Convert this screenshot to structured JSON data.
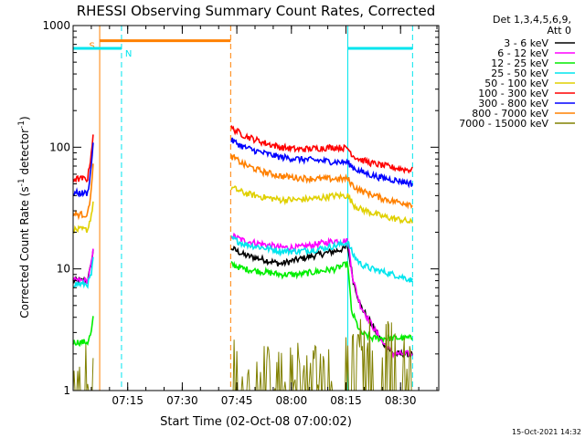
{
  "chart_data": {
    "type": "line",
    "title": "RHESSI Observing Summary Count Rates, Corrected",
    "xlabel": "Start Time (02-Oct-08 07:00:02)",
    "ylabel_main": "Corrected Count Rate (s",
    "ylabel_sup1": "-1",
    "ylabel_mid": " detector",
    "ylabel_sup2": "-1",
    "ylabel_end": ")",
    "xlim": [
      "07:00:02",
      "08:40:30"
    ],
    "ylim": [
      1,
      1000
    ],
    "yscale": "log",
    "xticks": [
      "07:15",
      "07:30",
      "07:45",
      "08:00",
      "08:15",
      "08:30"
    ],
    "xtick_values": [
      15,
      30,
      45,
      60,
      75,
      90
    ],
    "yticks": [
      "1",
      "10",
      "100",
      "1000"
    ],
    "ytick_values": [
      1,
      10,
      100,
      1000
    ],
    "legend_position": "right",
    "legend_title": [
      "Det 1,3,4,5,6,9,",
      "Att 0"
    ],
    "timestamp": "15-Oct-2021 14:32",
    "data_gaps_minutes": [
      [
        5.5,
        43.3
      ]
    ],
    "series": [
      {
        "name": "3 - 6 keV",
        "color": "#000000",
        "x": [
          0,
          4,
          5,
          5.5,
          43.3,
          47,
          52,
          57,
          62,
          67,
          72,
          75.5,
          77,
          79,
          82,
          85,
          88,
          91,
          93.3
        ],
        "y": [
          8,
          8,
          11,
          14,
          15,
          13,
          12,
          11,
          12,
          13,
          14,
          15,
          8,
          5,
          3.5,
          2.5,
          2,
          2,
          2
        ]
      },
      {
        "name": "6 - 12 keV",
        "color": "#ff00ff",
        "x": [
          0,
          4,
          5,
          5.5,
          43.3,
          47,
          52,
          57,
          62,
          67,
          72,
          75.5,
          77,
          79,
          82,
          85,
          88,
          91,
          93.3
        ],
        "y": [
          8,
          8,
          11,
          14,
          19,
          17,
          16,
          15,
          15,
          16,
          17,
          17,
          8,
          5,
          3.5,
          2.5,
          2,
          2,
          2
        ]
      },
      {
        "name": "12 - 25 keV",
        "color": "#00ee00",
        "x": [
          0,
          4,
          5,
          5.5,
          43.3,
          47,
          52,
          57,
          62,
          67,
          72,
          75.5,
          76.5,
          79,
          82,
          85,
          88,
          91,
          93.3
        ],
        "y": [
          2.5,
          2.5,
          3,
          4,
          11,
          10,
          9.5,
          9,
          9,
          9.5,
          10,
          11,
          4.5,
          3,
          2.7,
          2.7,
          2.7,
          2.7,
          2.7
        ]
      },
      {
        "name": "25 - 50 keV",
        "color": "#00e5ee",
        "x": [
          0,
          4,
          5,
          5.5,
          43.3,
          47,
          52,
          57,
          62,
          67,
          72,
          75.5,
          77,
          79,
          82,
          85,
          88,
          91,
          93.3
        ],
        "y": [
          7.5,
          7.5,
          9,
          12,
          18,
          16,
          15,
          14,
          14,
          14.5,
          15.5,
          16.5,
          13,
          11,
          10,
          9.5,
          9,
          8.5,
          8
        ]
      },
      {
        "name": "50 - 100 keV",
        "color": "#e0d000",
        "x": [
          0,
          4,
          5,
          5.5,
          43.3,
          47,
          52,
          57,
          62,
          67,
          72,
          75.5,
          77,
          79,
          82,
          85,
          88,
          91,
          93.3
        ],
        "y": [
          21,
          21,
          28,
          34,
          47,
          42,
          39,
          37,
          37,
          38,
          40,
          40,
          34,
          31,
          29,
          27,
          26,
          25,
          24
        ]
      },
      {
        "name": "100 - 300 keV",
        "color": "#ff0000",
        "x": [
          0,
          4,
          5,
          5.5,
          43.3,
          47,
          52,
          57,
          62,
          67,
          72,
          75.5,
          77,
          79,
          82,
          85,
          88,
          91,
          93.3
        ],
        "y": [
          55,
          55,
          90,
          130,
          145,
          125,
          110,
          100,
          96,
          98,
          100,
          98,
          85,
          79,
          74,
          71,
          68,
          66,
          65
        ]
      },
      {
        "name": "300 - 800 keV",
        "color": "#0000ff",
        "x": [
          0,
          4,
          5,
          5.5,
          43.3,
          47,
          52,
          57,
          62,
          67,
          72,
          75.5,
          77,
          79,
          82,
          85,
          88,
          91,
          93.3
        ],
        "y": [
          42,
          42,
          70,
          110,
          115,
          100,
          90,
          83,
          80,
          78,
          76,
          75,
          68,
          63,
          59,
          56,
          54,
          52,
          50
        ]
      },
      {
        "name": "800 - 7000 keV",
        "color": "#ff8000",
        "x": [
          0,
          4,
          5,
          5.5,
          43.3,
          47,
          52,
          57,
          62,
          67,
          72,
          75.5,
          77,
          79,
          82,
          85,
          88,
          91,
          93.3
        ],
        "y": [
          28,
          28,
          45,
          70,
          85,
          72,
          63,
          58,
          56,
          55,
          55,
          55,
          48,
          44,
          41,
          38,
          36,
          35,
          34
        ]
      },
      {
        "name": "7000 - 15000 keV",
        "color": "#808000",
        "x": [
          0,
          4,
          5,
          5.5,
          43.3,
          48,
          53,
          58,
          63,
          68,
          73,
          77,
          81,
          85,
          89,
          93.3
        ],
        "y": [
          1,
          1,
          1,
          1,
          1.4,
          1,
          1,
          1,
          1,
          1,
          1,
          1.5,
          1.8,
          1.6,
          1.4,
          1.3
        ]
      }
    ],
    "annotations": [
      {
        "label": "S",
        "color": "#ff8000",
        "x_start": 7.4,
        "x_end": 43.3,
        "y": 750
      },
      {
        "label": "N",
        "color": "#00e5ee",
        "x_start": 0,
        "x_end": 13.3,
        "y": 650
      },
      {
        "label": "",
        "color": "#00e5ee",
        "x_start": 75.5,
        "x_end": 93.3,
        "y": 650
      }
    ],
    "vertical_lines": [
      {
        "x": 7.3,
        "color": "#ff8000",
        "style": "solid"
      },
      {
        "x": 43.3,
        "color": "#ff8000",
        "style": "dashed"
      },
      {
        "x": 13.3,
        "color": "#00e5ee",
        "style": "dashed"
      },
      {
        "x": 75.5,
        "color": "#00e5ee",
        "style": "solid"
      },
      {
        "x": 93.3,
        "color": "#00e5ee",
        "style": "dashed"
      }
    ]
  }
}
